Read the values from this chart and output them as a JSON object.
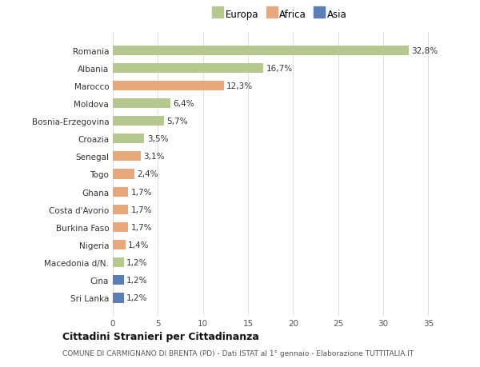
{
  "categories": [
    "Sri Lanka",
    "Cina",
    "Macedonia d/N.",
    "Nigeria",
    "Burkina Faso",
    "Costa d'Avorio",
    "Ghana",
    "Togo",
    "Senegal",
    "Croazia",
    "Bosnia-Erzegovina",
    "Moldova",
    "Marocco",
    "Albania",
    "Romania"
  ],
  "values": [
    1.2,
    1.2,
    1.2,
    1.4,
    1.7,
    1.7,
    1.7,
    2.4,
    3.1,
    3.5,
    5.7,
    6.4,
    12.3,
    16.7,
    32.8
  ],
  "labels": [
    "1,2%",
    "1,2%",
    "1,2%",
    "1,4%",
    "1,7%",
    "1,7%",
    "1,7%",
    "2,4%",
    "3,1%",
    "3,5%",
    "5,7%",
    "6,4%",
    "12,3%",
    "16,7%",
    "32,8%"
  ],
  "continent": [
    "Asia",
    "Asia",
    "Europa",
    "Africa",
    "Africa",
    "Africa",
    "Africa",
    "Africa",
    "Africa",
    "Europa",
    "Europa",
    "Europa",
    "Africa",
    "Europa",
    "Europa"
  ],
  "colors": {
    "Europa": "#b5c98e",
    "Africa": "#e8a87c",
    "Asia": "#5b7fb5"
  },
  "title": "Cittadini Stranieri per Cittadinanza",
  "subtitle": "COMUNE DI CARMIGNANO DI BRENTA (PD) - Dati ISTAT al 1° gennaio - Elaborazione TUTTITALIA.IT",
  "xlim": [
    0,
    37
  ],
  "xticks": [
    0,
    5,
    10,
    15,
    20,
    25,
    30,
    35
  ],
  "background_color": "#ffffff",
  "bar_height": 0.55,
  "grid_color": "#e0e0e0"
}
